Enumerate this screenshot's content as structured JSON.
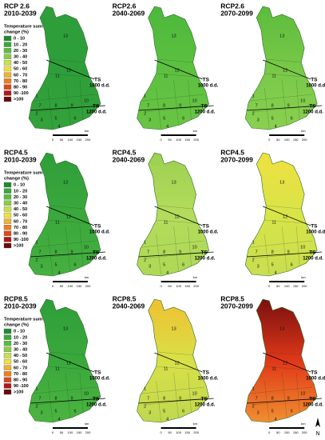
{
  "legend": {
    "title": [
      "Temperature sum",
      "change (%)"
    ],
    "items": [
      {
        "label": "0 - 10",
        "color": "#1e8c2e"
      },
      {
        "label": "10 - 20",
        "color": "#3aa83c"
      },
      {
        "label": "20 - 30",
        "color": "#5cbc3c"
      },
      {
        "label": "30 - 40",
        "color": "#8ccc44"
      },
      {
        "label": "40 - 50",
        "color": "#c8e04c"
      },
      {
        "label": "50 - 60",
        "color": "#f0e040"
      },
      {
        "label": "60 - 70",
        "color": "#f0b030"
      },
      {
        "label": "70 - 80",
        "color": "#e88020"
      },
      {
        "label": "80 - 90",
        "color": "#e04818"
      },
      {
        "label": "90 -100",
        "color": "#b01818"
      },
      {
        "label": ">100",
        "color": "#6a0a0a"
      }
    ]
  },
  "regions": [
    "1",
    "2",
    "3",
    "4",
    "5",
    "6",
    "7",
    "8",
    "9",
    "10",
    "11",
    "12",
    "13"
  ],
  "ts_upper": [
    "TS",
    "1000 d.d."
  ],
  "ts_lower": [
    "TS",
    "1200 d.d."
  ],
  "scale": {
    "ticks": [
      "0",
      "50",
      "100",
      "150",
      "200"
    ],
    "unit": "km"
  },
  "north": "N",
  "panels": [
    {
      "title": [
        "RCP 2.6",
        "2010-2039"
      ],
      "show_legend": true,
      "fill": [
        "#2e9e3a",
        "#2e9e3a",
        "#34a23a"
      ]
    },
    {
      "title": [
        "RCP2.6",
        "2040-2069"
      ],
      "show_legend": false,
      "fill": [
        "#4cb83c",
        "#5cc040",
        "#6ac444"
      ]
    },
    {
      "title": [
        "RCP2.6",
        "2070-2099"
      ],
      "show_legend": false,
      "fill": [
        "#5cbc3c",
        "#78c848",
        "#8ad050"
      ]
    },
    {
      "title": [
        "RCP4.5",
        "2010-2039"
      ],
      "show_legend": true,
      "fill": [
        "#2e9e3a",
        "#3aa83c",
        "#46b040"
      ]
    },
    {
      "title": [
        "RCP4.5",
        "2040-2069"
      ],
      "show_legend": false,
      "fill": [
        "#9cd050",
        "#b4dc5c",
        "#aed856"
      ]
    },
    {
      "title": [
        "RCP4.5",
        "2070-2099"
      ],
      "show_legend": false,
      "fill": [
        "#f0e040",
        "#d8e448",
        "#c8de50"
      ]
    },
    {
      "title": [
        "RCP8.5",
        "2010-2039"
      ],
      "show_legend": true,
      "fill": [
        "#2e9e3a",
        "#3aa83c",
        "#4cb440"
      ]
    },
    {
      "title": [
        "RCP8.5",
        "2040-2069"
      ],
      "show_legend": false,
      "fill": [
        "#f0c030",
        "#d8e048",
        "#c0d850"
      ]
    },
    {
      "title": [
        "RCP8.5",
        "2070-2099"
      ],
      "show_legend": false,
      "fill": [
        "#7a1010",
        "#e03818",
        "#f09030"
      ]
    }
  ]
}
